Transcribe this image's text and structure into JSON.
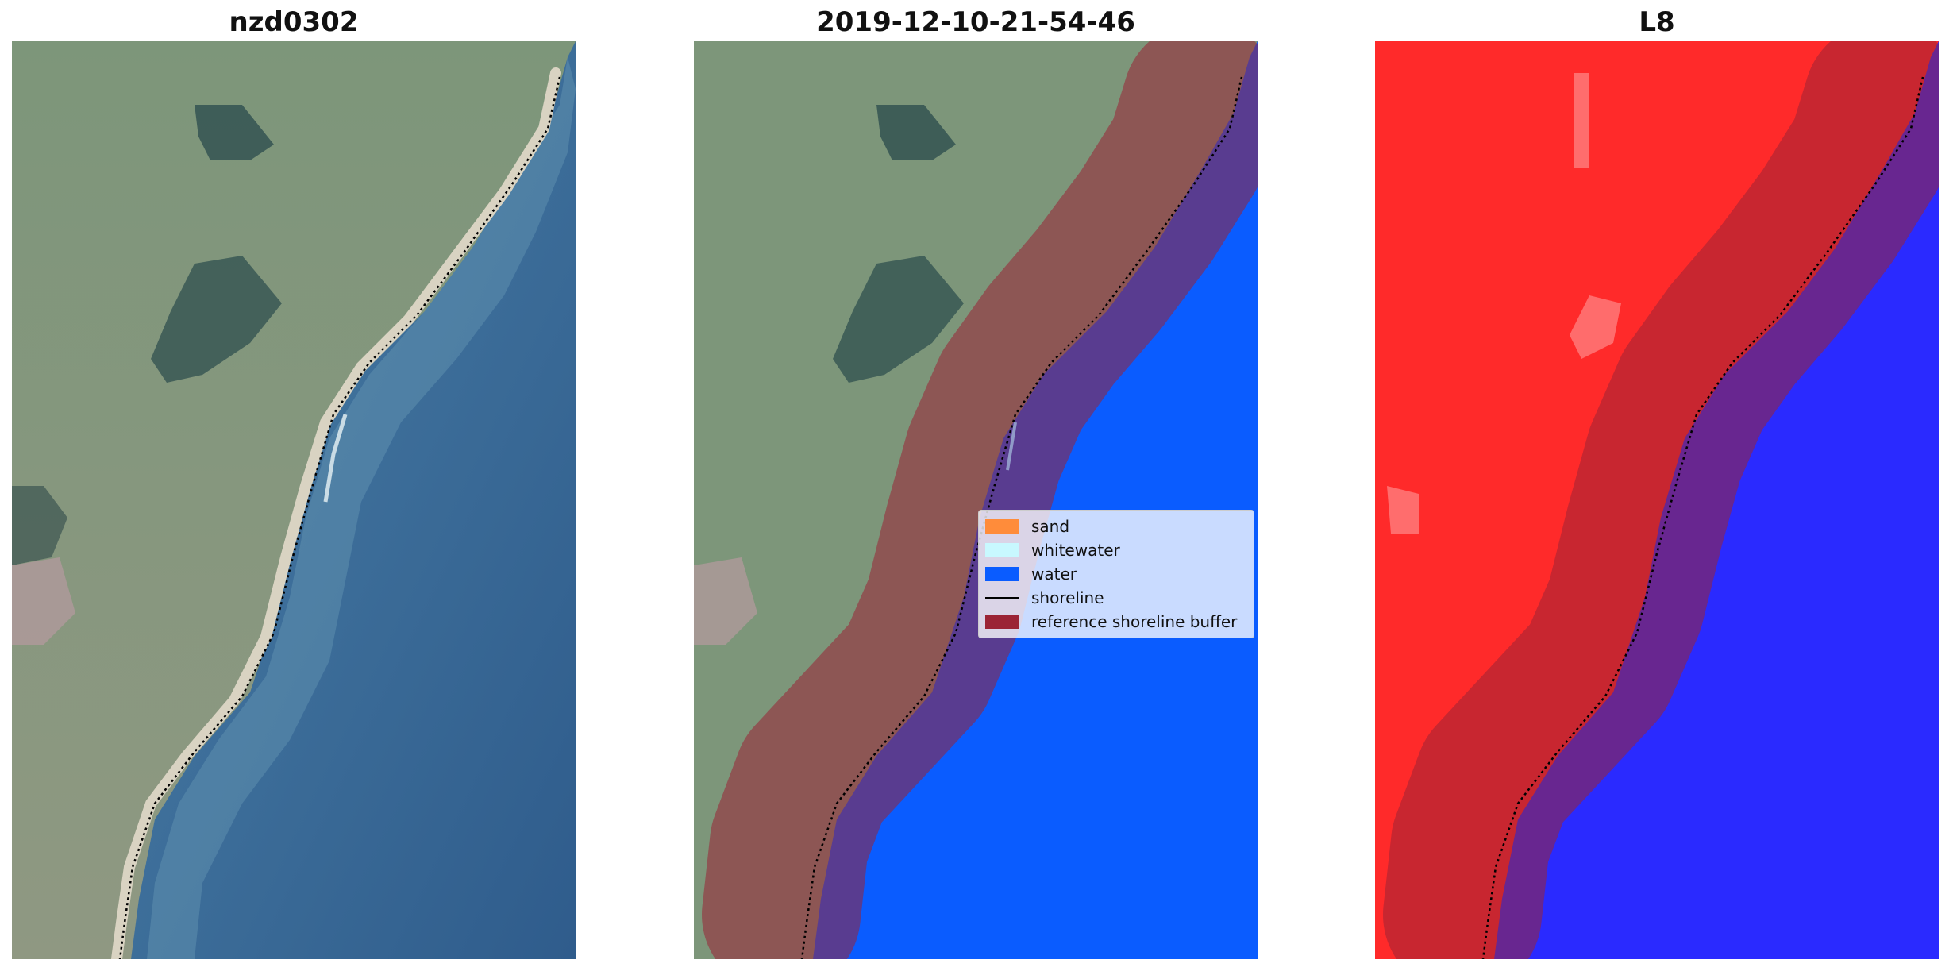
{
  "panels": [
    {
      "title": "nzd0302"
    },
    {
      "title": "2019-12-10-21-54-46"
    },
    {
      "title": "L8"
    }
  ],
  "legend": {
    "items": [
      {
        "label": "sand",
        "color": "#ff8c3a"
      },
      {
        "label": "whitewater",
        "color": "#c8f8ff"
      },
      {
        "label": "water",
        "color": "#0a5cff"
      },
      {
        "label": "shoreline",
        "color": "#000000"
      },
      {
        "label": "reference shoreline buffer",
        "color": "#9b2335"
      }
    ]
  },
  "colors": {
    "land": "#7c9278",
    "ocean": "#3d6f99",
    "beach": "#d9d3c2",
    "classified_water": "#0a5cff",
    "buffer": "#9b2335",
    "index_land": "#ff2a2a",
    "index_water": "#2a2aff"
  }
}
